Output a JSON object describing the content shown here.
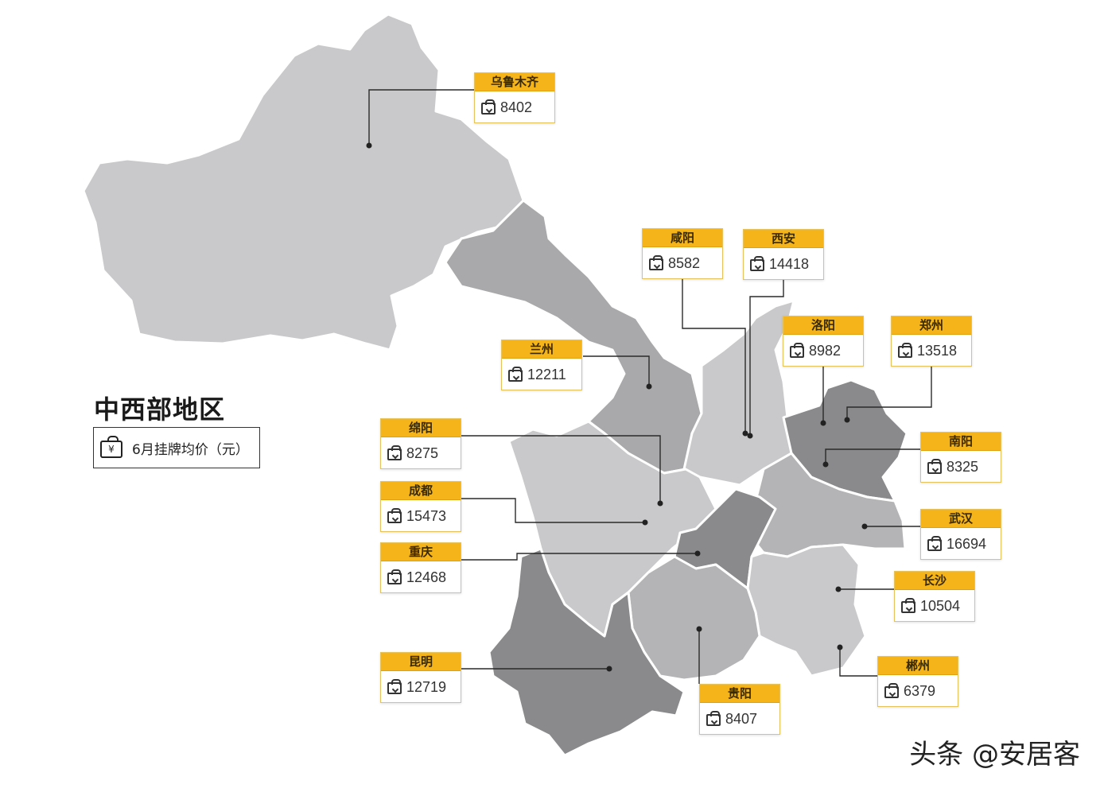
{
  "title": "中西部地区",
  "legend": {
    "icon": "price-tag-icon",
    "currency_symbol": "¥",
    "label": "6月挂牌均价（元）"
  },
  "colors": {
    "label_header": "#f4b41a",
    "region_light": "#c9c9cb",
    "region_medium": "#a9a9ab",
    "region_dark": "#8a8a8c"
  },
  "cities": [
    {
      "id": "urumqi",
      "name": "乌鲁木齐",
      "price": "8402"
    },
    {
      "id": "xianyang",
      "name": "咸阳",
      "price": "8582"
    },
    {
      "id": "xian",
      "name": "西安",
      "price": "14418"
    },
    {
      "id": "luoyang",
      "name": "洛阳",
      "price": "8982"
    },
    {
      "id": "zhengzhou",
      "name": "郑州",
      "price": "13518"
    },
    {
      "id": "lanzhou",
      "name": "兰州",
      "price": "12211"
    },
    {
      "id": "nanyang",
      "name": "南阳",
      "price": "8325"
    },
    {
      "id": "mianyang",
      "name": "绵阳",
      "price": "8275"
    },
    {
      "id": "chengdu",
      "name": "成都",
      "price": "15473"
    },
    {
      "id": "wuhan",
      "name": "武汉",
      "price": "16694"
    },
    {
      "id": "chongqing",
      "name": "重庆",
      "price": "12468"
    },
    {
      "id": "changsha",
      "name": "长沙",
      "price": "10504"
    },
    {
      "id": "kunming",
      "name": "昆明",
      "price": "12719"
    },
    {
      "id": "chenzhou",
      "name": "郴州",
      "price": "6379"
    },
    {
      "id": "guiyang",
      "name": "贵阳",
      "price": "8407"
    }
  ],
  "watermark": "头条 @安居客"
}
